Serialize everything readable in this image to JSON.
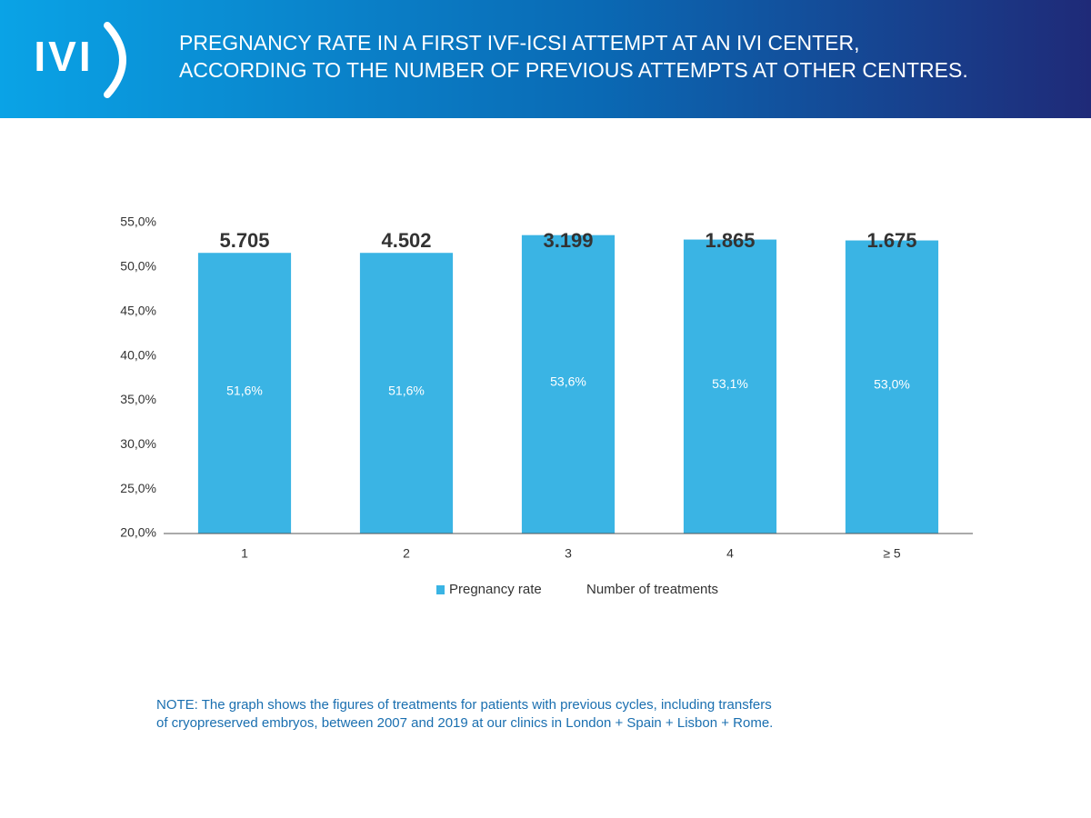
{
  "chart_data": {
    "type": "bar",
    "logo": "IVI",
    "title_lines": [
      "PREGNANCY RATE IN A FIRST IVF-ICSI ATTEMPT AT AN IVI CENTER,",
      "ACCORDING TO THE NUMBER OF PREVIOUS ATTEMPTS AT OTHER CENTRES."
    ],
    "categories": [
      "1",
      "2",
      "3",
      "4",
      "≥ 5"
    ],
    "series": [
      {
        "name": "Pregnancy rate",
        "color": "#3ab4e4",
        "values": [
          51.6,
          51.6,
          53.6,
          53.1,
          53.0
        ],
        "value_labels": [
          "51,6%",
          "51,6%",
          "53,6%",
          "53,1%",
          "53,0%"
        ]
      }
    ],
    "treatments": {
      "name": "Number of treatments",
      "values": [
        5705,
        4502,
        3199,
        1865,
        1675
      ],
      "value_labels": [
        "5.705",
        "4.502",
        "3.199",
        "1.865",
        "1.675"
      ]
    },
    "ylim": [
      20,
      55
    ],
    "yticks": [
      {
        "value": 20,
        "label": "20,0%"
      },
      {
        "value": 25,
        "label": "25,0%"
      },
      {
        "value": 30,
        "label": "30,0%"
      },
      {
        "value": 35,
        "label": "35,0%"
      },
      {
        "value": 40,
        "label": "40,0%"
      },
      {
        "value": 45,
        "label": "45,0%"
      },
      {
        "value": 50,
        "label": "50,0%"
      },
      {
        "value": 55,
        "label": "55,0%"
      }
    ],
    "grid": false,
    "note_lines": [
      "NOTE: The graph shows the figures of treatments for patients with previous cycles, including transfers",
      "of cryopreserved embryos, between 2007 and 2019 at our clinics in London + Spain + Lisbon + Rome."
    ]
  }
}
